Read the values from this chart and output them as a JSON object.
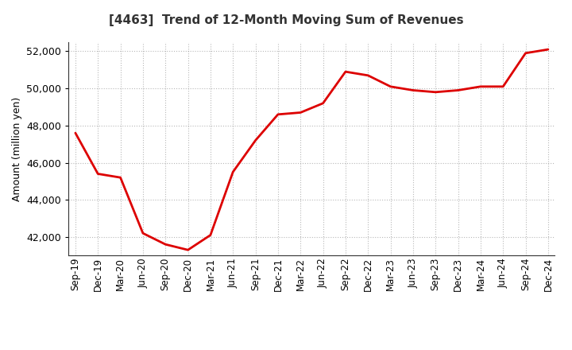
{
  "title": "[4463]  Trend of 12-Month Moving Sum of Revenues",
  "ylabel": "Amount (million yen)",
  "line_color": "#dd0000",
  "line_width": 2.0,
  "background_color": "#ffffff",
  "plot_bg_color": "#ffffff",
  "grid_color": "#999999",
  "ylim": [
    41000,
    52500
  ],
  "yticks": [
    42000,
    44000,
    46000,
    48000,
    50000,
    52000
  ],
  "labels": [
    "Sep-19",
    "Dec-19",
    "Mar-20",
    "Jun-20",
    "Sep-20",
    "Dec-20",
    "Mar-21",
    "Jun-21",
    "Sep-21",
    "Dec-21",
    "Mar-22",
    "Jun-22",
    "Sep-22",
    "Dec-22",
    "Mar-23",
    "Jun-23",
    "Sep-23",
    "Dec-23",
    "Mar-24",
    "Jun-24",
    "Sep-24",
    "Dec-24"
  ],
  "values": [
    47600,
    45400,
    45200,
    42200,
    41600,
    41300,
    42100,
    45500,
    47200,
    48600,
    48700,
    49200,
    50900,
    50700,
    50100,
    49900,
    49800,
    49900,
    50100,
    50100,
    51900,
    52100
  ]
}
